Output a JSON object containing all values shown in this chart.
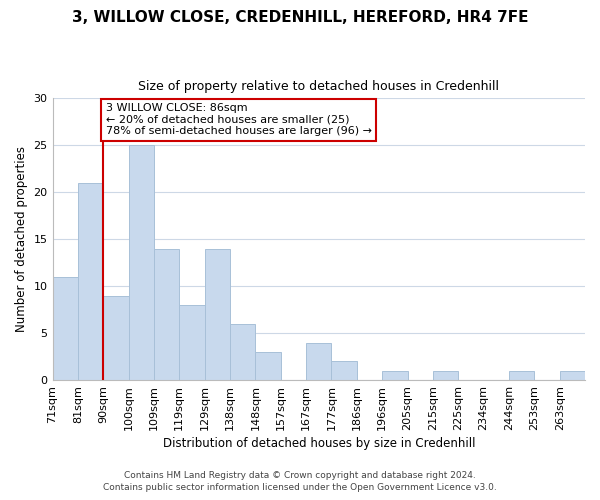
{
  "title": "3, WILLOW CLOSE, CREDENHILL, HEREFORD, HR4 7FE",
  "subtitle": "Size of property relative to detached houses in Credenhill",
  "xlabel": "Distribution of detached houses by size in Credenhill",
  "ylabel": "Number of detached properties",
  "bar_color": "#c8d9ed",
  "bar_edge_color": "#a8c0d8",
  "bins": [
    "71sqm",
    "81sqm",
    "90sqm",
    "100sqm",
    "109sqm",
    "119sqm",
    "129sqm",
    "138sqm",
    "148sqm",
    "157sqm",
    "167sqm",
    "177sqm",
    "186sqm",
    "196sqm",
    "205sqm",
    "215sqm",
    "225sqm",
    "234sqm",
    "244sqm",
    "253sqm",
    "263sqm"
  ],
  "values": [
    11,
    21,
    9,
    25,
    14,
    8,
    14,
    6,
    3,
    0,
    4,
    2,
    0,
    1,
    0,
    1,
    0,
    0,
    1,
    0,
    1
  ],
  "ylim": [
    0,
    30
  ],
  "yticks": [
    0,
    5,
    10,
    15,
    20,
    25,
    30
  ],
  "annotation_box_text": "3 WILLOW CLOSE: 86sqm\n← 20% of detached houses are smaller (25)\n78% of semi-detached houses are larger (96) →",
  "red_line_bin_index": 2,
  "footer_line1": "Contains HM Land Registry data © Crown copyright and database right 2024.",
  "footer_line2": "Contains public sector information licensed under the Open Government Licence v3.0.",
  "background_color": "#ffffff",
  "grid_color": "#cdd8e6"
}
